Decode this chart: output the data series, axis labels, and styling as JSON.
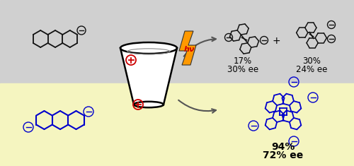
{
  "bg_top_color": "#d0d0d0",
  "bg_bottom_color": "#f5f5c0",
  "top_text_1": "17%",
  "top_text_2": "30% ee",
  "top_text_3": "30%",
  "top_text_4": "24% ee",
  "bottom_text_1": "94%",
  "bottom_text_2": "72% ee",
  "plus_sign": "+",
  "hv_text": "hν",
  "hv_color": "#cc0000",
  "lightning_color": "#ff9900",
  "arrow_color": "#555555",
  "top_molecule_color": "#111111",
  "bottom_molecule_color": "#0000cc",
  "plus_ion_color": "#cc0000",
  "fig_width": 5.0,
  "fig_height": 2.35,
  "dpi": 100
}
